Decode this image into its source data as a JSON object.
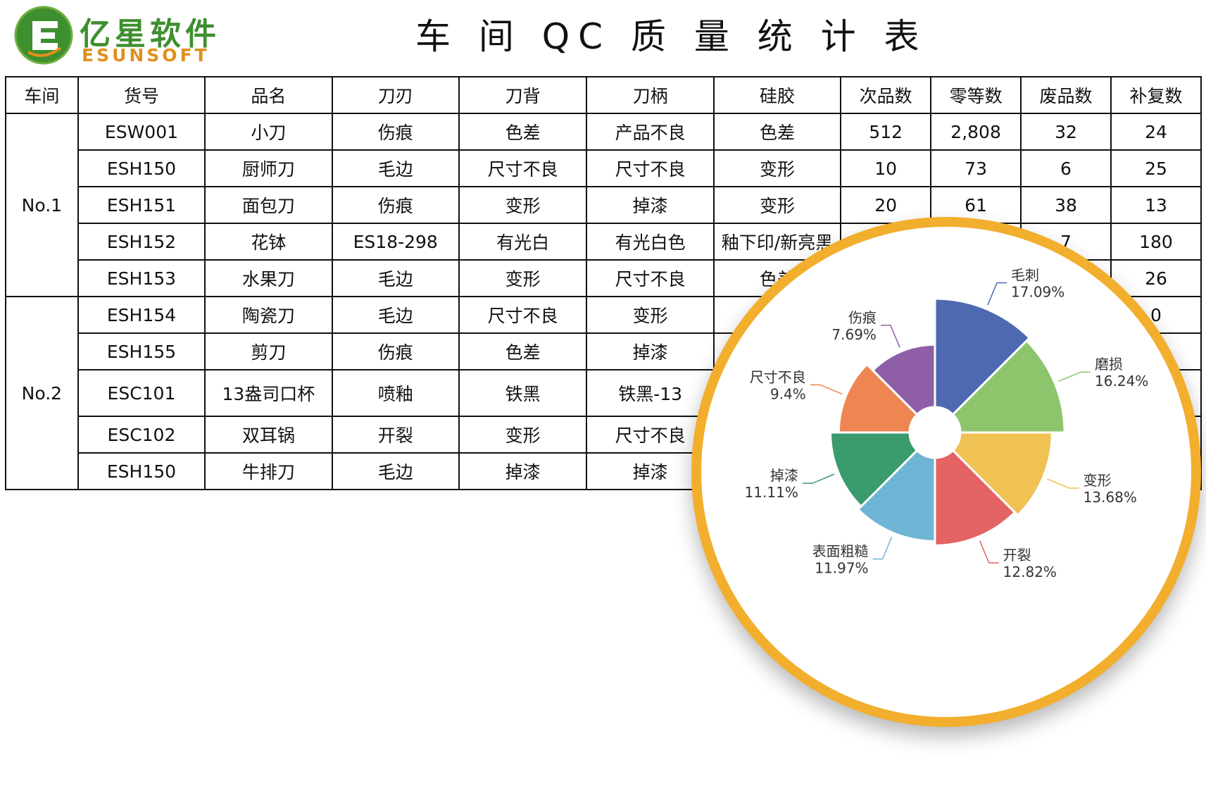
{
  "brand": {
    "name_cn": "亿星软件",
    "name_en": "ESUNSOFT",
    "green": "#3e8f2f",
    "orange": "#e0901c"
  },
  "page_title": "车 间 QC 质 量 统 计 表",
  "table": {
    "headers": [
      "车间",
      "货号",
      "品名",
      "刀刃",
      "刀背",
      "刀柄",
      "硅胶",
      "次品数",
      "零等数",
      "废品数",
      "补复数"
    ],
    "groups": [
      "No.1",
      "No.2"
    ],
    "rows": [
      [
        "ESW001",
        "小刀",
        "伤痕",
        "色差",
        "产品不良",
        "色差",
        "512",
        "2,808",
        "32",
        "24"
      ],
      [
        "ESH150",
        "厨师刀",
        "毛边",
        "尺寸不良",
        "尺寸不良",
        "变形",
        "10",
        "73",
        "6",
        "25"
      ],
      [
        "ESH151",
        "面包刀",
        "伤痕",
        "变形",
        "掉漆",
        "变形",
        "20",
        "61",
        "38",
        "13"
      ],
      [
        "ESH152",
        "花钵",
        "ES18-298",
        "有光白",
        "有光白色",
        "釉下印/新亮黑",
        "",
        "",
        "7",
        "180"
      ],
      [
        "ESH153",
        "水果刀",
        "毛边",
        "变形",
        "尺寸不良",
        "色差",
        "",
        "",
        "",
        "26"
      ],
      [
        "ESH154",
        "陶瓷刀",
        "毛边",
        "尺寸不良",
        "变形",
        "",
        "",
        "",
        "",
        "0"
      ],
      [
        "ESH155",
        "剪刀",
        "伤痕",
        "色差",
        "掉漆",
        "",
        "",
        "",
        "",
        ""
      ],
      [
        "ESC101",
        "13盎司口杯",
        "喷釉",
        "铁黑",
        "铁黑-13",
        "",
        "",
        "",
        "",
        ""
      ],
      [
        "ESC102",
        "双耳锅",
        "开裂",
        "变形",
        "尺寸不良",
        "",
        "",
        "",
        "",
        ""
      ],
      [
        "ESH150",
        "牛排刀",
        "毛边",
        "掉漆",
        "掉漆",
        "",
        "",
        "",
        "",
        ""
      ]
    ]
  },
  "chart_data": {
    "type": "pie",
    "subtype": "rose",
    "slices": [
      {
        "label": "毛刺",
        "value": 17.09,
        "value_label": "17.09%",
        "color": "#4e69b1"
      },
      {
        "label": "磨损",
        "value": 16.24,
        "value_label": "16.24%",
        "color": "#8dc56c"
      },
      {
        "label": "变形",
        "value": 13.68,
        "value_label": "13.68%",
        "color": "#f0c153"
      },
      {
        "label": "开裂",
        "value": 12.82,
        "value_label": "12.82%",
        "color": "#e46363"
      },
      {
        "label": "表面粗糙",
        "value": 11.97,
        "value_label": "11.97%",
        "color": "#6eb5d6"
      },
      {
        "label": "掉漆",
        "value": 11.11,
        "value_label": "11.11%",
        "color": "#3a9b6c"
      },
      {
        "label": "尺寸不良",
        "value": 9.4,
        "value_label": "9.4%",
        "color": "#ef8552"
      },
      {
        "label": "伤痕",
        "value": 7.69,
        "value_label": "7.69%",
        "color": "#8e5fa6"
      }
    ],
    "legend": "none"
  }
}
